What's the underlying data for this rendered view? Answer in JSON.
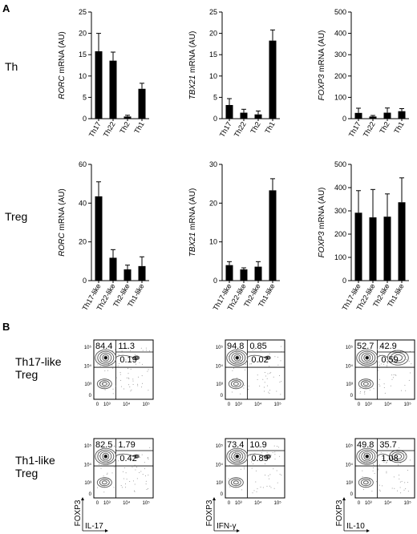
{
  "panel_labels": {
    "a": "A",
    "b": "B"
  },
  "row_labels": {
    "th": "Th",
    "treg": "Treg"
  },
  "flow_row_labels": [
    [
      "Th17-like",
      "Treg"
    ],
    [
      "Th1-like",
      "Treg"
    ]
  ],
  "flow_axis_labels": {
    "y": "FOXP3",
    "x": [
      "IL-17",
      "IFN-γ",
      "IL-10"
    ]
  },
  "flow_ticks": [
    "0",
    "10³",
    "10⁴",
    "10⁵"
  ],
  "chart_data": [
    {
      "type": "bar",
      "row": "Th",
      "ylabel_gene": "RORC",
      "ylabel_rest": " mRNA (AU)",
      "categories": [
        "Th17",
        "Th22",
        "Th2",
        "Th1"
      ],
      "values": [
        15.8,
        13.6,
        0.5,
        7.0
      ],
      "errors": [
        4.2,
        2.0,
        0.3,
        1.3
      ],
      "ylim": [
        0,
        25
      ],
      "yticks": [
        0,
        5,
        10,
        15,
        20,
        25
      ]
    },
    {
      "type": "bar",
      "row": "Th",
      "ylabel_gene": "TBX21",
      "ylabel_rest": " mRNA (AU)",
      "categories": [
        "Th17",
        "Th22",
        "Th2",
        "Th1"
      ],
      "values": [
        3.2,
        1.4,
        1.0,
        18.3
      ],
      "errors": [
        1.5,
        0.8,
        0.8,
        2.5
      ],
      "ylim": [
        0,
        25
      ],
      "yticks": [
        0,
        5,
        10,
        15,
        20,
        25
      ]
    },
    {
      "type": "bar",
      "row": "Th",
      "ylabel_gene": "FOXP3",
      "ylabel_rest": " mRNA (AU)",
      "categories": [
        "Th17",
        "Th22",
        "Th2",
        "Th1"
      ],
      "values": [
        27,
        10,
        28,
        35
      ],
      "errors": [
        22,
        5,
        22,
        12
      ],
      "ylim": [
        0,
        500
      ],
      "yticks": [
        0,
        100,
        200,
        300,
        400,
        500
      ]
    },
    {
      "type": "bar",
      "row": "Treg",
      "ylabel_gene": "RORC",
      "ylabel_rest": " mRNA (AU)",
      "categories": [
        "Th17-like",
        "Th22-like",
        "Th2-like",
        "Th1-like"
      ],
      "values": [
        43.5,
        11.8,
        5.8,
        7.5
      ],
      "errors": [
        7.5,
        4.2,
        2.2,
        4.8
      ],
      "ylim": [
        0,
        60
      ],
      "yticks": [
        0,
        20,
        40,
        60
      ]
    },
    {
      "type": "bar",
      "row": "Treg",
      "ylabel_gene": "TBX21",
      "ylabel_rest": " mRNA (AU)",
      "categories": [
        "Th17-like",
        "Th22-like",
        "Th2-like",
        "Th1-like"
      ],
      "values": [
        4.0,
        2.9,
        3.6,
        23.3
      ],
      "errors": [
        0.9,
        0.4,
        1.3,
        3.0
      ],
      "ylim": [
        0,
        30
      ],
      "yticks": [
        0,
        10,
        20,
        30
      ]
    },
    {
      "type": "bar",
      "row": "Treg",
      "ylabel_gene": "FOXP3",
      "ylabel_rest": " mRNA (AU)",
      "categories": [
        "Th17-like",
        "Th22-like",
        "Th2-like",
        "Th1-like"
      ],
      "values": [
        292,
        272,
        275,
        337
      ],
      "errors": [
        95,
        120,
        98,
        105
      ],
      "ylim": [
        0,
        500
      ],
      "yticks": [
        0,
        100,
        200,
        300,
        400,
        500
      ]
    }
  ],
  "flow_quadrants": [
    [
      [
        "84.4",
        "11.3",
        "0.19"
      ],
      [
        "94.8",
        "0.85",
        "0.02"
      ],
      [
        "52.7",
        "42.9",
        "0.59"
      ]
    ],
    [
      [
        "82.5",
        "1.79",
        "0.42"
      ],
      [
        "73.4",
        "10.9",
        "0.89"
      ],
      [
        "49.8",
        "35.7",
        "1.08"
      ]
    ]
  ],
  "colors": {
    "bar": "#000000",
    "axis": "#000000",
    "contour": "#555555"
  }
}
